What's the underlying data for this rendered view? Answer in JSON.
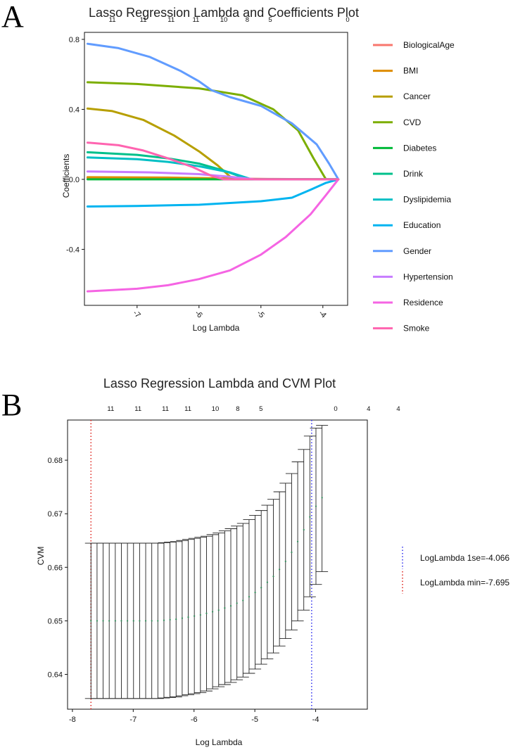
{
  "chart_data": [
    {
      "type": "line",
      "panel": "A",
      "title": "Lasso Regression Lambda and Coefficients Plot",
      "xlabel": "Log Lambda",
      "ylabel": "Coefficients",
      "xlim": [
        -7.85,
        -3.6
      ],
      "ylim": [
        -0.72,
        0.84
      ],
      "xticks": [
        -7,
        -6,
        -5,
        -4
      ],
      "xtick_labels": [
        "-7",
        "-6",
        "-5",
        "-4"
      ],
      "yticks": [
        -0.4,
        0.0,
        0.4,
        0.8
      ],
      "ytick_labels": [
        "-0.4",
        "0.0",
        "0.4",
        "0.8"
      ],
      "top_counts": [
        {
          "x": -7.4,
          "label": "11"
        },
        {
          "x": -6.9,
          "label": "11"
        },
        {
          "x": -6.45,
          "label": "11"
        },
        {
          "x": -6.05,
          "label": "11"
        },
        {
          "x": -5.6,
          "label": "10"
        },
        {
          "x": -5.22,
          "label": "8"
        },
        {
          "x": -4.85,
          "label": "5"
        },
        {
          "x": -3.6,
          "label": "0"
        }
      ],
      "legend_position": "right",
      "series": [
        {
          "name": "BiologicalAge",
          "color": "#f8766d",
          "x": [
            -7.8,
            -6.5,
            -5.5,
            -4.8,
            -3.75
          ],
          "values": [
            0.008,
            0.007,
            0.005,
            0.002,
            0.0
          ]
        },
        {
          "name": "BMI",
          "color": "#de8c00",
          "x": [
            -7.8,
            -6.5,
            -5.5,
            -5.2,
            -3.75
          ],
          "values": [
            0.012,
            0.01,
            0.005,
            0.0,
            0.0
          ]
        },
        {
          "name": "Cancer",
          "color": "#b79f00",
          "x": [
            -7.8,
            -7.4,
            -6.9,
            -6.4,
            -6.0,
            -5.7,
            -5.45,
            -3.75
          ],
          "values": [
            0.405,
            0.39,
            0.34,
            0.25,
            0.16,
            0.08,
            0.0,
            0.0
          ]
        },
        {
          "name": "CVD",
          "color": "#7cae00",
          "x": [
            -7.8,
            -7.0,
            -6.0,
            -5.3,
            -4.8,
            -4.4,
            -4.15,
            -3.95,
            -3.75
          ],
          "values": [
            0.555,
            0.545,
            0.52,
            0.48,
            0.4,
            0.28,
            0.12,
            0.0,
            0.0
          ]
        },
        {
          "name": "Diabetes",
          "color": "#00ba38",
          "x": [
            -7.8,
            -5.8,
            -5.3,
            -3.75
          ],
          "values": [
            0.0,
            0.0,
            0.0,
            0.0
          ]
        },
        {
          "name": "Drink",
          "color": "#00c08b",
          "x": [
            -7.8,
            -7.0,
            -6.5,
            -6.0,
            -5.6,
            -5.2,
            -3.75
          ],
          "values": [
            0.155,
            0.14,
            0.12,
            0.09,
            0.05,
            0.0,
            0.0
          ]
        },
        {
          "name": "Dyslipidemia",
          "color": "#00bfc4",
          "x": [
            -7.8,
            -7.0,
            -6.5,
            -6.0,
            -5.5,
            -5.15,
            -3.75
          ],
          "values": [
            0.125,
            0.115,
            0.1,
            0.075,
            0.04,
            0.0,
            0.0
          ]
        },
        {
          "name": "Education",
          "color": "#00b4f0",
          "x": [
            -7.8,
            -7.0,
            -6.0,
            -5.0,
            -4.5,
            -4.2,
            -3.95,
            -3.75
          ],
          "values": [
            -0.155,
            -0.152,
            -0.145,
            -0.125,
            -0.105,
            -0.06,
            -0.02,
            0.0
          ]
        },
        {
          "name": "Gender",
          "color": "#619cff",
          "x": [
            -7.8,
            -7.3,
            -6.8,
            -6.3,
            -6.0,
            -5.8,
            -5.5,
            -5.0,
            -4.5,
            -4.1,
            -3.9,
            -3.75
          ],
          "values": [
            0.775,
            0.75,
            0.7,
            0.62,
            0.56,
            0.51,
            0.47,
            0.42,
            0.32,
            0.2,
            0.09,
            0.0
          ]
        },
        {
          "name": "Hypertension",
          "color": "#c77cff",
          "x": [
            -7.8,
            -6.8,
            -6.0,
            -5.5,
            -5.1,
            -3.75
          ],
          "values": [
            0.045,
            0.04,
            0.03,
            0.015,
            0.0,
            0.0
          ]
        },
        {
          "name": "Residence",
          "color": "#f564e3",
          "x": [
            -7.8,
            -7.0,
            -6.5,
            -6.0,
            -5.5,
            -5.0,
            -4.6,
            -4.2,
            -3.95,
            -3.75
          ],
          "values": [
            -0.64,
            -0.625,
            -0.605,
            -0.57,
            -0.52,
            -0.43,
            -0.33,
            -0.2,
            -0.09,
            0.0
          ]
        },
        {
          "name": "Smoke",
          "color": "#ff64b0",
          "x": [
            -7.8,
            -7.3,
            -6.9,
            -6.5,
            -6.1,
            -5.8,
            -5.6,
            -3.75
          ],
          "values": [
            0.21,
            0.195,
            0.165,
            0.12,
            0.07,
            0.02,
            0.0,
            0.0
          ]
        }
      ]
    },
    {
      "type": "errorbar",
      "panel": "B",
      "title": "Lasso Regression Lambda and CVM Plot",
      "xlabel": "Log Lambda",
      "ylabel": "CVM",
      "xlim": [
        -8.08,
        -3.15
      ],
      "ylim": [
        0.6335,
        0.6875
      ],
      "xticks": [
        -8,
        -7,
        -6,
        -5,
        -4
      ],
      "xtick_labels": [
        "-8",
        "-7",
        "-6",
        "-5",
        "-4"
      ],
      "yticks": [
        0.64,
        0.65,
        0.66,
        0.67,
        0.68
      ],
      "ytick_labels": [
        "0.64",
        "0.65",
        "0.66",
        "0.67",
        "0.68"
      ],
      "top_counts": [
        {
          "x": -7.37,
          "label": "11"
        },
        {
          "x": -6.92,
          "label": "11"
        },
        {
          "x": -6.47,
          "label": "11"
        },
        {
          "x": -6.1,
          "label": "11"
        },
        {
          "x": -5.65,
          "label": "10"
        },
        {
          "x": -5.28,
          "label": "8"
        },
        {
          "x": -4.9,
          "label": "5"
        },
        {
          "x": -3.67,
          "label": "0"
        },
        {
          "x": -3.13,
          "label": "4"
        },
        {
          "x": -2.64,
          "label": "4"
        }
      ],
      "cv_points": {
        "loglambda_start": -7.695,
        "loglambda_step": 0.1,
        "cvm": [
          0.65,
          0.65,
          0.65,
          0.65,
          0.65,
          0.65,
          0.65,
          0.65,
          0.65,
          0.65,
          0.65,
          0.65,
          0.6501,
          0.6502,
          0.6503,
          0.6505,
          0.6507,
          0.6509,
          0.6511,
          0.6514,
          0.6517,
          0.652,
          0.6524,
          0.6528,
          0.6533,
          0.6538,
          0.6545,
          0.6553,
          0.6562,
          0.6572,
          0.6583,
          0.6596,
          0.6611,
          0.6628,
          0.6648,
          0.667,
          0.6694,
          0.6714,
          0.673
        ],
        "upper": [
          0.6645,
          0.6645,
          0.6645,
          0.6645,
          0.6645,
          0.6645,
          0.6645,
          0.6645,
          0.6645,
          0.6645,
          0.6645,
          0.6645,
          0.6646,
          0.6647,
          0.6648,
          0.665,
          0.6652,
          0.6654,
          0.6656,
          0.6658,
          0.6661,
          0.6664,
          0.6668,
          0.6672,
          0.6677,
          0.6682,
          0.6689,
          0.6697,
          0.6706,
          0.6716,
          0.6727,
          0.6741,
          0.6757,
          0.6775,
          0.6797,
          0.682,
          0.6845,
          0.686,
          0.6865
        ],
        "lower": [
          0.6355,
          0.6355,
          0.6355,
          0.6355,
          0.6355,
          0.6355,
          0.6355,
          0.6355,
          0.6355,
          0.6355,
          0.6355,
          0.6355,
          0.6356,
          0.6357,
          0.6358,
          0.636,
          0.6362,
          0.6364,
          0.6366,
          0.6369,
          0.6373,
          0.6377,
          0.6381,
          0.6385,
          0.639,
          0.6395,
          0.6402,
          0.641,
          0.6419,
          0.6429,
          0.644,
          0.6453,
          0.6467,
          0.6483,
          0.65,
          0.652,
          0.6545,
          0.6568,
          0.6592
        ]
      },
      "reference_lines": [
        {
          "x": -4.066,
          "color": "#3b3bf0",
          "label": "LogLambda 1se=-4.066"
        },
        {
          "x": -7.695,
          "color": "#e0302a",
          "label": "LogLambda min=-7.695"
        }
      ],
      "colors": {
        "errorbar": "#222222",
        "point": "#2e8b57"
      }
    }
  ]
}
